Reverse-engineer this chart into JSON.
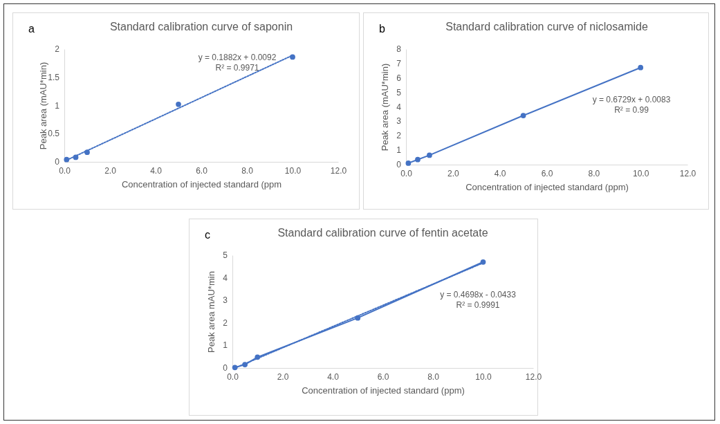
{
  "chart_data": [
    {
      "type": "scatter",
      "title": "Standard calibration curve of saponin",
      "xlabel": "Concentration of injected standard (ppm",
      "ylabel": "Peak area (mAU*min)",
      "annotations": [
        "a",
        "y = 0.1882x + 0.0092",
        "R² = 0.9971"
      ],
      "xlim": [
        0,
        12
      ],
      "xticks": [
        {
          "value": 0,
          "label": "0.0"
        },
        {
          "value": 2,
          "label": "2.0"
        },
        {
          "value": 4,
          "label": "4.0"
        },
        {
          "value": 6,
          "label": "6.0"
        },
        {
          "value": 8,
          "label": "8.0"
        },
        {
          "value": 10,
          "label": "10.0"
        },
        {
          "value": 12,
          "label": "12.0"
        }
      ],
      "ylim": [
        0,
        2
      ],
      "yticks": [
        0,
        0.5,
        1,
        1.5,
        2
      ],
      "series": [
        {
          "type": "line",
          "line_style": "dotted",
          "color": "#4472c4",
          "x": [
            0.1,
            10
          ],
          "values": [
            0.03,
            1.89
          ]
        },
        {
          "marker": "circle",
          "color": "#4472c4",
          "x": [
            0.1,
            0.5,
            1,
            5,
            10
          ],
          "values": [
            0.04,
            0.08,
            0.17,
            1.02,
            1.86
          ]
        }
      ]
    },
    {
      "type": "line",
      "title": "Standard calibration curve of niclosamide",
      "xlabel": "Concentration of injected standard (ppm)",
      "ylabel": "Peak area (mAU*min)",
      "annotations": [
        "b",
        "y = 0.6729x + 0.0083",
        "R² = 0.99"
      ],
      "xlim": [
        0,
        12
      ],
      "xticks": [
        {
          "value": 0,
          "label": "0.0"
        },
        {
          "value": 2,
          "label": "2.0"
        },
        {
          "value": 4,
          "label": "4.0"
        },
        {
          "value": 6,
          "label": "6.0"
        },
        {
          "value": 8,
          "label": "8.0"
        },
        {
          "value": 10,
          "label": "10.0"
        },
        {
          "value": 12,
          "label": "12.0"
        }
      ],
      "ylim": [
        0,
        8
      ],
      "yticks": [
        0,
        1,
        2,
        3,
        4,
        5,
        6,
        7,
        8
      ],
      "series": [
        {
          "marker": "circle",
          "line_style": "solid",
          "color": "#4472c4",
          "x": [
            0.1,
            0.5,
            1,
            5,
            10
          ],
          "values": [
            0.1,
            0.35,
            0.65,
            3.4,
            6.72
          ]
        }
      ]
    },
    {
      "type": "line",
      "title": "Standard calibration curve of fentin acetate",
      "xlabel": "Concentration of injected standard (ppm)",
      "ylabel": "Peak area mAU*min",
      "annotations": [
        "c",
        "y = 0.4698x - 0.0433",
        "R² = 0.9991"
      ],
      "xlim": [
        0,
        12
      ],
      "xticks": [
        {
          "value": 0,
          "label": "0.0"
        },
        {
          "value": 2,
          "label": "2.0"
        },
        {
          "value": 4,
          "label": "4.0"
        },
        {
          "value": 6,
          "label": "6.0"
        },
        {
          "value": 8,
          "label": "8.0"
        },
        {
          "value": 10,
          "label": "10.0"
        },
        {
          "value": 12,
          "label": "12.0"
        }
      ],
      "ylim": [
        0,
        5
      ],
      "yticks": [
        0,
        1,
        2,
        3,
        4,
        5
      ],
      "series": [
        {
          "line_style": "dotted",
          "color": "#4472c4",
          "x": [
            0.1,
            10
          ],
          "values": [
            0,
            4.66
          ]
        },
        {
          "marker": "circle",
          "line_style": "solid",
          "color": "#4472c4",
          "x": [
            0.1,
            0.5,
            1,
            5,
            10
          ],
          "values": [
            0.02,
            0.15,
            0.48,
            2.22,
            4.7
          ]
        }
      ]
    }
  ]
}
